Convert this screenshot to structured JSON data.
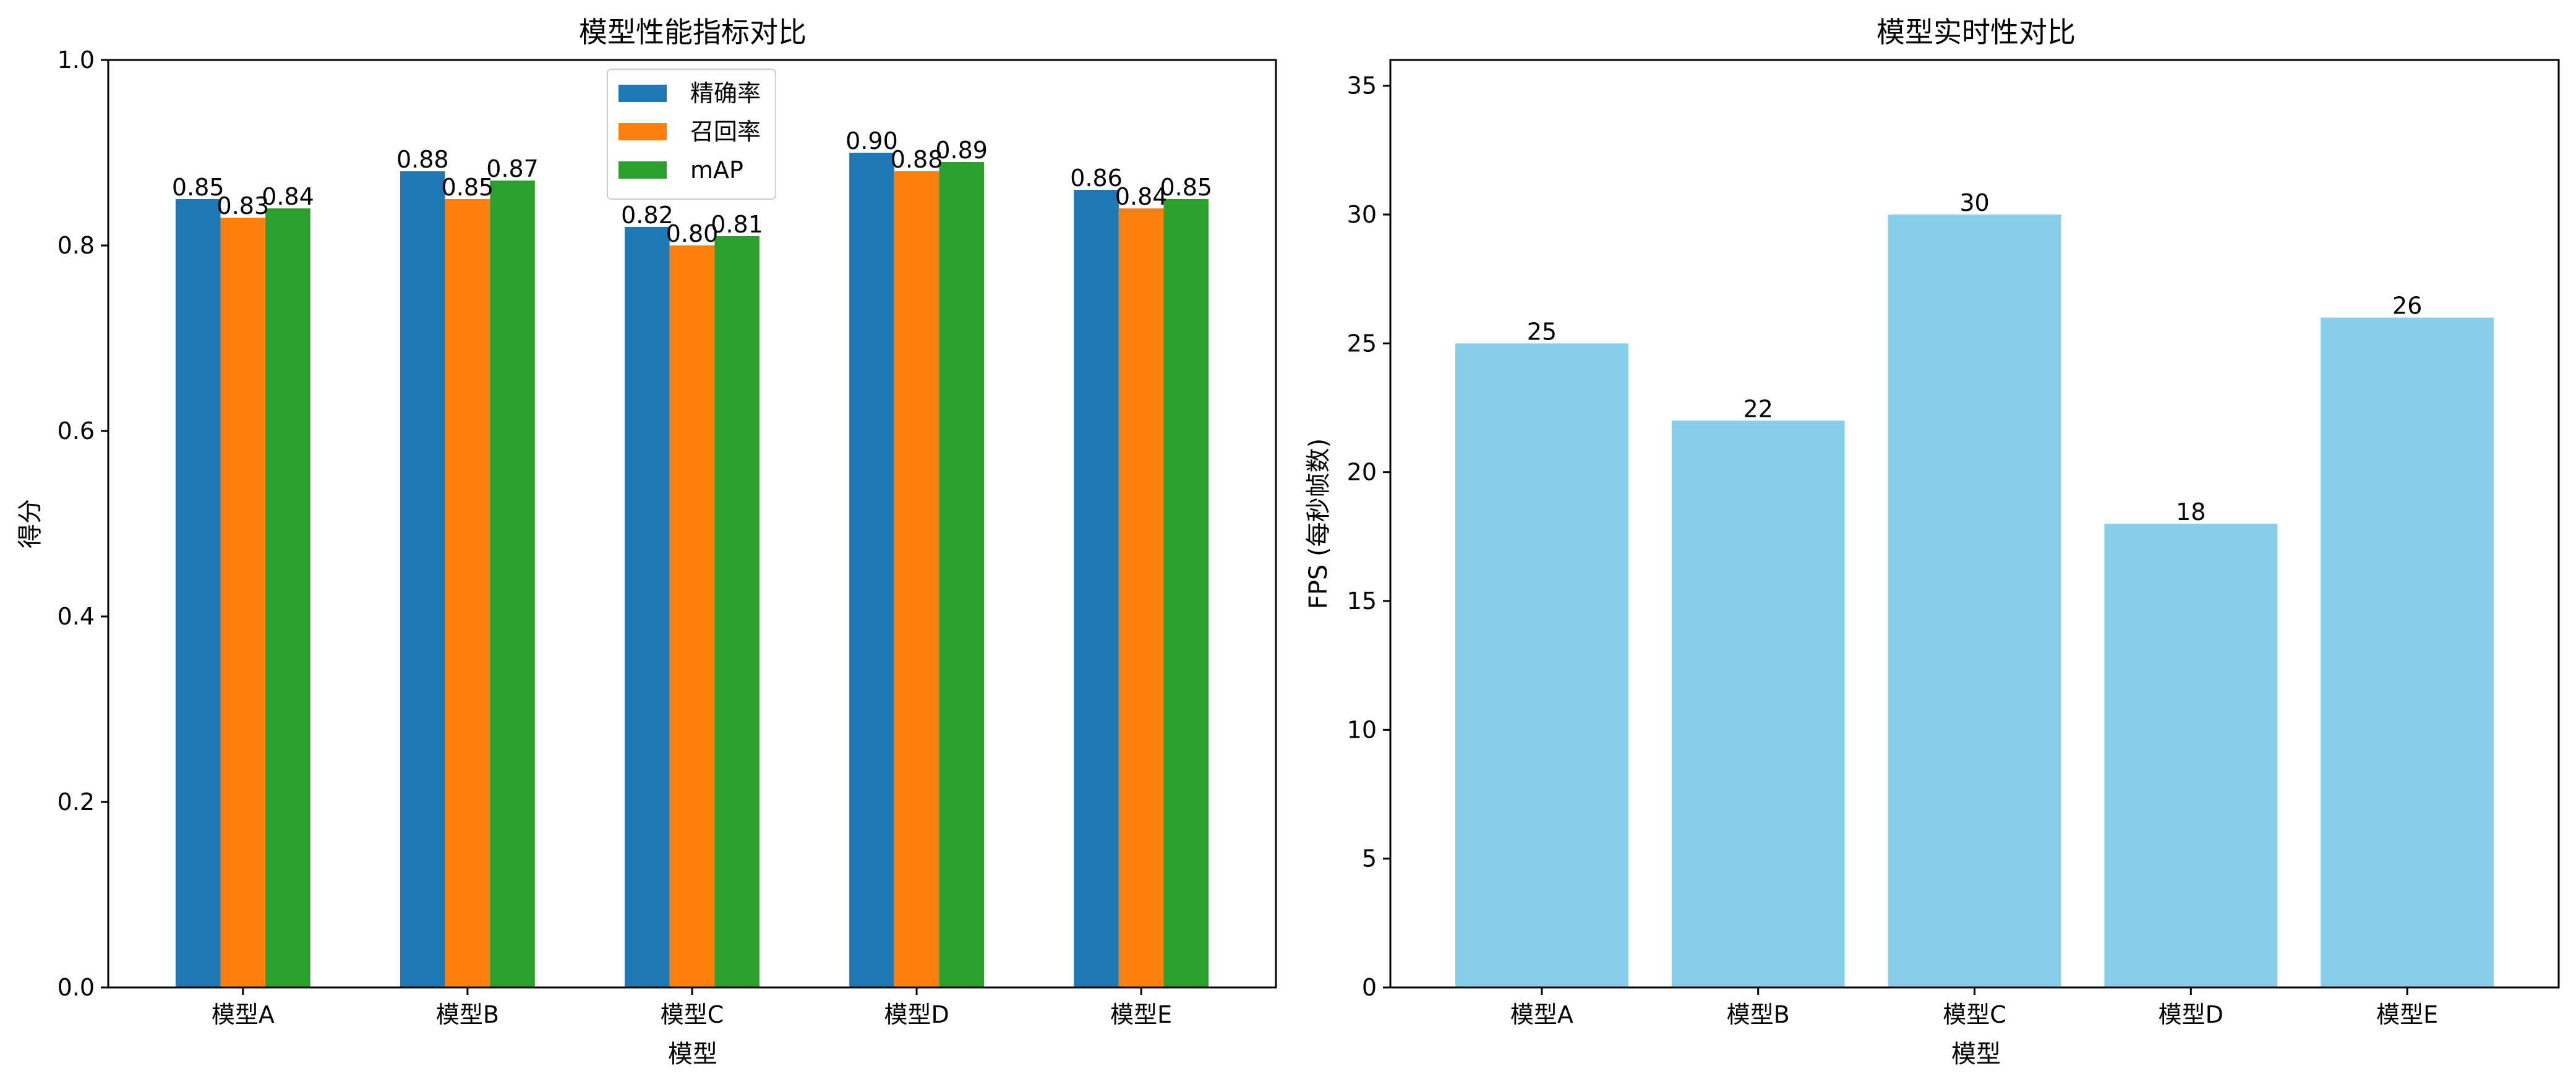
{
  "chart_data": [
    {
      "type": "bar",
      "title": "模型性能指标对比",
      "xlabel": "模型",
      "ylabel": "得分",
      "categories": [
        "模型A",
        "模型B",
        "模型C",
        "模型D",
        "模型E"
      ],
      "ylim": [
        0,
        1.0
      ],
      "yticks": [
        "0.0",
        "0.2",
        "0.4",
        "0.6",
        "0.8",
        "1.0"
      ],
      "ytick_values": [
        0,
        0.2,
        0.4,
        0.6,
        0.8,
        1.0
      ],
      "legend_position": "top-center",
      "series": [
        {
          "name": "精确率",
          "color": "#1f77b4",
          "values": [
            0.85,
            0.88,
            0.82,
            0.9,
            0.86
          ],
          "labels": [
            "0.85",
            "0.88",
            "0.82",
            "0.90",
            "0.86"
          ]
        },
        {
          "name": "召回率",
          "color": "#ff7f0e",
          "values": [
            0.83,
            0.85,
            0.8,
            0.88,
            0.84
          ],
          "labels": [
            "0.83",
            "0.85",
            "0.80",
            "0.88",
            "0.84"
          ]
        },
        {
          "name": "mAP",
          "color": "#2ca02c",
          "values": [
            0.84,
            0.87,
            0.81,
            0.89,
            0.85
          ],
          "labels": [
            "0.84",
            "0.87",
            "0.81",
            "0.89",
            "0.85"
          ]
        }
      ]
    },
    {
      "type": "bar",
      "title": "模型实时性对比",
      "xlabel": "模型",
      "ylabel": "FPS (每秒帧数)",
      "categories": [
        "模型A",
        "模型B",
        "模型C",
        "模型D",
        "模型E"
      ],
      "ylim": [
        0,
        36
      ],
      "yticks": [
        "0",
        "5",
        "10",
        "15",
        "20",
        "25",
        "30",
        "35"
      ],
      "ytick_values": [
        0,
        5,
        10,
        15,
        20,
        25,
        30,
        35
      ],
      "color": "#87ceeb",
      "values": [
        25,
        22,
        30,
        18,
        26
      ],
      "labels": [
        "25",
        "22",
        "30",
        "18",
        "26"
      ]
    }
  ]
}
